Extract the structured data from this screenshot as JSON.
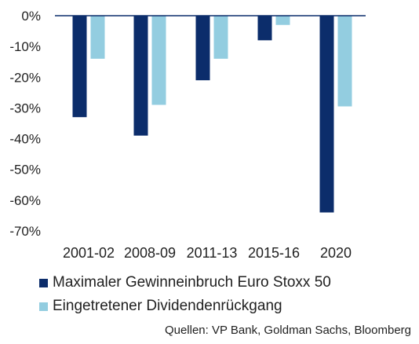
{
  "chart_data": {
    "type": "bar",
    "categories": [
      "2001-02",
      "2008-09",
      "2011-13",
      "2015-16",
      "2020"
    ],
    "series": [
      {
        "name": "Maximaler Gewinneinbruch Euro Stoxx 50",
        "values": [
          -33,
          -39,
          -21,
          -8,
          -64
        ],
        "color": "#0c2d6b"
      },
      {
        "name": "Eingetretener Dividendenrückgang",
        "values": [
          -14,
          -29,
          -14,
          -3,
          -29.5
        ],
        "color": "#93cde0"
      }
    ],
    "yticks": [
      "0%",
      "-10%",
      "-20%",
      "-30%",
      "-40%",
      "-50%",
      "-60%",
      "-70%"
    ],
    "ytick_values": [
      0,
      -10,
      -20,
      -30,
      -40,
      -50,
      -60,
      -70
    ],
    "ylim": [
      -70,
      0
    ],
    "grid": false,
    "legend_position": "bottom-left",
    "source": "Quellen: VP Bank, Goldman Sachs, Bloomberg"
  }
}
